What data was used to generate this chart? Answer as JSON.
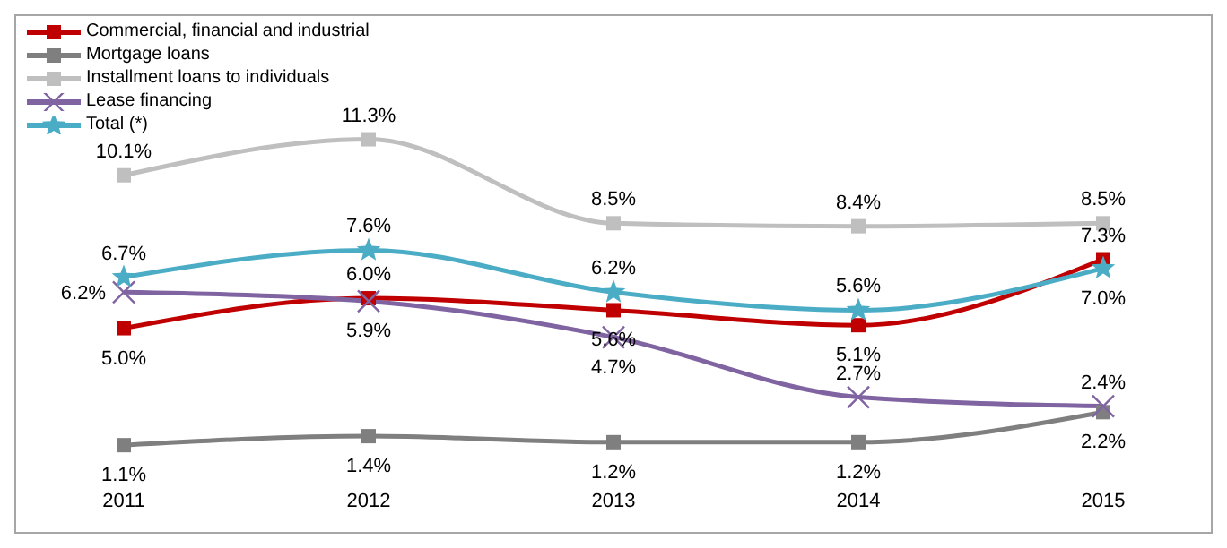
{
  "chart_data": {
    "type": "line",
    "categories": [
      "2011",
      "2012",
      "2013",
      "2014",
      "2015"
    ],
    "series": [
      {
        "name": "Commercial, financial and industrial",
        "color": "#c00000",
        "marker": "square",
        "values": [
          5.0,
          6.0,
          5.6,
          5.1,
          7.3
        ],
        "value_labels": [
          "5.0%",
          "6.0%",
          "5.6%",
          "5.1%",
          "7.3%"
        ]
      },
      {
        "name": "Mortgage loans",
        "color": "#7f7f7f",
        "marker": "square",
        "values": [
          1.1,
          1.4,
          1.2,
          1.2,
          2.2
        ],
        "value_labels": [
          "1.1%",
          "1.4%",
          "1.2%",
          "1.2%",
          "2.2%"
        ]
      },
      {
        "name": "Installment loans to individuals",
        "color": "#bfbfbf",
        "marker": "square",
        "values": [
          10.1,
          11.3,
          8.5,
          8.4,
          8.5
        ],
        "value_labels": [
          "10.1%",
          "11.3%",
          "8.5%",
          "8.4%",
          "8.5%"
        ]
      },
      {
        "name": "Lease financing",
        "color": "#8064a2",
        "marker": "cross",
        "values": [
          6.2,
          5.9,
          4.7,
          2.7,
          2.4
        ],
        "value_labels": [
          "6.2%",
          "5.9%",
          "4.7%",
          "2.7%",
          "2.4%"
        ]
      },
      {
        "name": "Total (*)",
        "color": "#4bacc6",
        "marker": "star",
        "values": [
          6.7,
          7.6,
          6.2,
          5.6,
          7.0
        ],
        "value_labels": [
          "6.7%",
          "7.6%",
          "6.2%",
          "5.6%",
          "7.0%"
        ]
      }
    ],
    "legend": "top left",
    "grid": false,
    "tick_labels": "x"
  }
}
